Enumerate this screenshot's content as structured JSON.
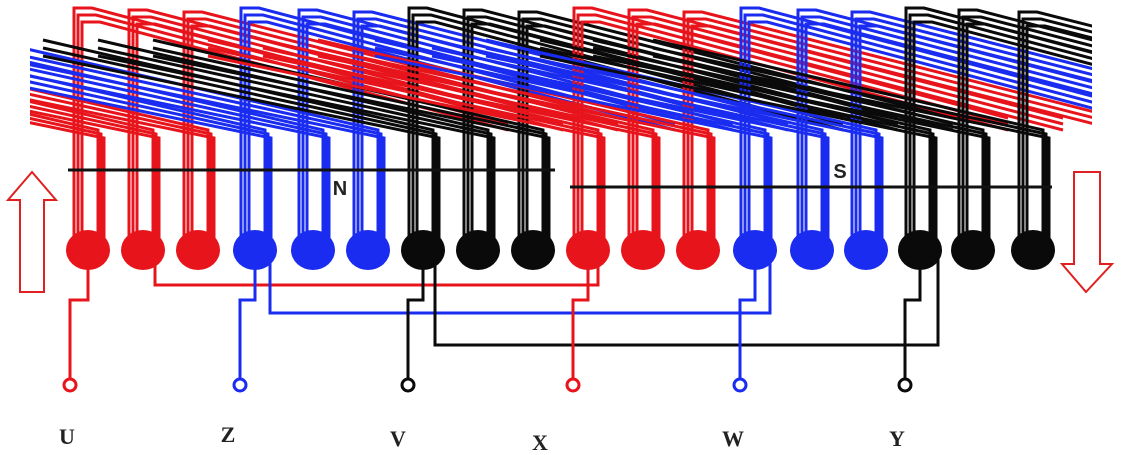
{
  "pole_labels": [
    "N",
    "S"
  ],
  "terminals": [
    "U",
    "Z",
    "V",
    "X",
    "W",
    "Y"
  ]
}
